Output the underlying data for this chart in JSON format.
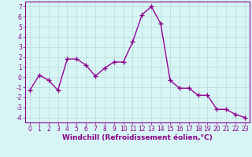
{
  "x": [
    0,
    1,
    2,
    3,
    4,
    5,
    6,
    7,
    8,
    9,
    10,
    11,
    12,
    13,
    14,
    15,
    16,
    17,
    18,
    19,
    20,
    21,
    22,
    23
  ],
  "y": [
    -1.3,
    0.2,
    -0.3,
    -1.3,
    1.8,
    1.8,
    1.2,
    0.1,
    0.9,
    1.5,
    1.5,
    3.5,
    6.2,
    7.0,
    5.3,
    -0.3,
    -1.1,
    -1.1,
    -1.8,
    -1.8,
    -3.2,
    -3.2,
    -3.7,
    -4.0
  ],
  "line_color": "#990099",
  "marker": "+",
  "marker_size": 4,
  "bg_color": "#d8f5f5",
  "grid_color": "#b8d8d8",
  "xlabel": "Windchill (Refroidissement éolien,°C)",
  "xlim": [
    -0.5,
    23.5
  ],
  "ylim": [
    -4.5,
    7.5
  ],
  "xticks": [
    0,
    1,
    2,
    3,
    4,
    5,
    6,
    7,
    8,
    9,
    10,
    11,
    12,
    13,
    14,
    15,
    16,
    17,
    18,
    19,
    20,
    21,
    22,
    23
  ],
  "yticks": [
    -4,
    -3,
    -2,
    -1,
    0,
    1,
    2,
    3,
    4,
    5,
    6,
    7
  ],
  "tick_fontsize": 5.5,
  "xlabel_fontsize": 6.5,
  "axis_color": "#880088",
  "spine_color": "#880088",
  "line_width": 1.0,
  "marker_color": "#880088"
}
